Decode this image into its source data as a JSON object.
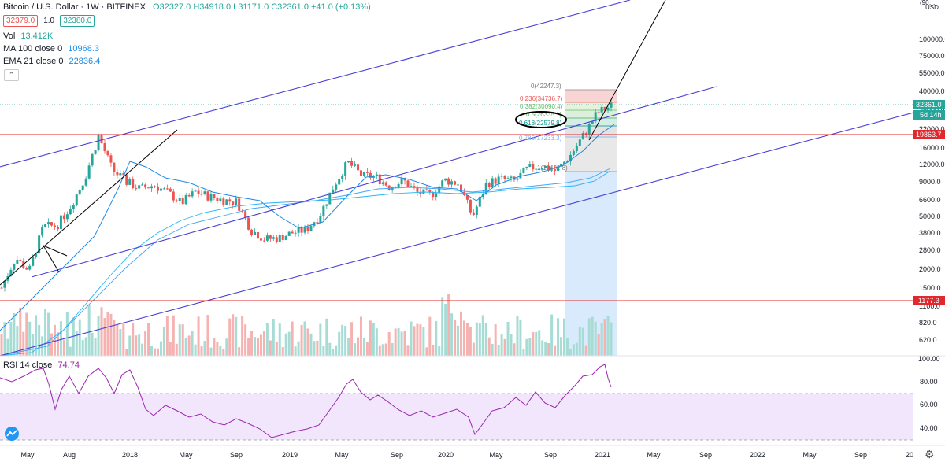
{
  "header": {
    "symbol": "Bitcoin / U.S. Dollar · 1W · BITFINEX",
    "ohlc": "O32327.0  H34918.0  L31171.0  C32361.0  +41.0 (+0.13%)",
    "bid": "32379.0",
    "spread": "1.0",
    "ask": "32380.0"
  },
  "indicators": {
    "vol_label": "Vol",
    "vol_value": "13.412K",
    "ma_label": "MA 100 close 0",
    "ma_value": "10968.3",
    "ema_label": "EMA 21 close 0",
    "ema_value": "22836.4",
    "rsi_label": "RSI 14 close",
    "rsi_value": "74.74",
    "collapse_icon": "chevron-up-icon"
  },
  "price_axis": {
    "currency": "USD",
    "scale": "log",
    "ticks": [
      "100000.0",
      "75000.0",
      "55000.0",
      "40000.0",
      "28000.0",
      "22000.0",
      "16000.0",
      "12000.0",
      "9000.0",
      "6600.0",
      "5000.0",
      "3800.0",
      "2800.0",
      "2000.0",
      "1500.0",
      "1100.0",
      "820.0",
      "620.0"
    ],
    "top_partial": "(90…",
    "current_price": "32361.0",
    "countdown": "5d 14h",
    "line1": "19863.7",
    "line2": "1177.3"
  },
  "rsi_axis": {
    "ticks": [
      "100.00",
      "80.00",
      "60.00",
      "40.00"
    ]
  },
  "time_axis": {
    "ticks": [
      "May",
      "Aug",
      "2018",
      "May",
      "Sep",
      "2019",
      "May",
      "Sep",
      "2020",
      "May",
      "Sep",
      "2021",
      "May",
      "Sep",
      "2022",
      "May",
      "Sep",
      "20"
    ]
  },
  "fib": {
    "levels": [
      "0(42247.3)",
      "0.236(34736.7)",
      "0.382(30090.4)",
      "0.5(26335.1)",
      "0.618(22579.8)",
      "0.786(17233.3)",
      "1(10482.8)"
    ]
  },
  "colors": {
    "up": "#26a69a",
    "down": "#ef5350",
    "channel": "#4a3fd6",
    "trend": "#000000",
    "ema": "#2196f3",
    "rsi": "#9c27b0",
    "rsi_band": "#f1e6fb",
    "hline": "#e0292e",
    "projection": "#cfe5fb"
  },
  "icons": {
    "logo": "tradingview-logo-icon",
    "settings": "gear-icon"
  },
  "chart_data": {
    "type": "candlestick",
    "title": "Bitcoin / U.S. Dollar · 1W · BITFINEX",
    "price_series": [
      [
        "2017-05",
        1500
      ],
      [
        "2017-06",
        2500
      ],
      [
        "2017-07",
        2000
      ],
      [
        "2017-08",
        4200
      ],
      [
        "2017-09",
        4300
      ],
      [
        "2017-10",
        6000
      ],
      [
        "2017-11",
        9500
      ],
      [
        "2017-12",
        19500
      ],
      [
        "2018-01",
        11000
      ],
      [
        "2018-02",
        9000
      ],
      [
        "2018-03",
        8000
      ],
      [
        "2018-04",
        8500
      ],
      [
        "2018-05",
        7500
      ],
      [
        "2018-06",
        6300
      ],
      [
        "2018-07",
        7600
      ],
      [
        "2018-08",
        7000
      ],
      [
        "2018-09",
        6600
      ],
      [
        "2018-10",
        6400
      ],
      [
        "2018-11",
        4000
      ],
      [
        "2018-12",
        3400
      ],
      [
        "2019-01",
        3500
      ],
      [
        "2019-02",
        3800
      ],
      [
        "2019-03",
        4000
      ],
      [
        "2019-04",
        5200
      ],
      [
        "2019-05",
        8500
      ],
      [
        "2019-06",
        12500
      ],
      [
        "2019-07",
        10000
      ],
      [
        "2019-08",
        9800
      ],
      [
        "2019-09",
        8300
      ],
      [
        "2019-10",
        9200
      ],
      [
        "2019-11",
        7500
      ],
      [
        "2019-12",
        7200
      ],
      [
        "2020-01",
        9300
      ],
      [
        "2020-02",
        8700
      ],
      [
        "2020-03",
        5000
      ],
      [
        "2020-04",
        8700
      ],
      [
        "2020-05",
        9500
      ],
      [
        "2020-06",
        9100
      ],
      [
        "2020-07",
        11300
      ],
      [
        "2020-08",
        11800
      ],
      [
        "2020-09",
        10800
      ],
      [
        "2020-10",
        13800
      ],
      [
        "2020-11",
        19700
      ],
      [
        "2020-12",
        29000
      ],
      [
        "2021-01",
        32361
      ]
    ]
  }
}
